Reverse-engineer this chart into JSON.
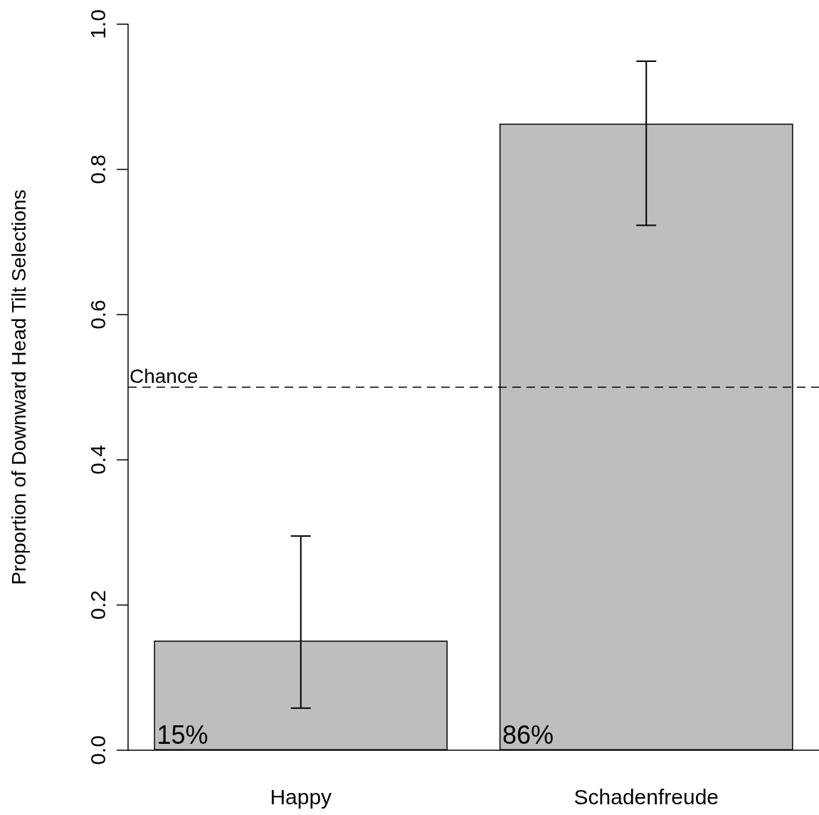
{
  "chart_data": {
    "type": "bar",
    "ylabel": "Proportion of Downward Head Tilt Selections",
    "categories": [
      "Happy",
      "Schadenfreude"
    ],
    "values": [
      0.151,
      0.863
    ],
    "color": "#bebebe",
    "value_labels": [
      "15%",
      "86%"
    ],
    "errors": [
      [
        0.058,
        0.295
      ],
      [
        0.723,
        0.949
      ]
    ],
    "ylim": [
      0,
      1
    ],
    "yticks": [
      {
        "value": 0,
        "label": "0.0"
      },
      {
        "value": 0.2,
        "label": "0.2"
      },
      {
        "value": 0.4,
        "label": "0.4"
      },
      {
        "value": 0.6,
        "label": "0.6"
      },
      {
        "value": 0.8,
        "label": "0.8"
      },
      {
        "value": 1,
        "label": "1.0"
      }
    ],
    "ref_lines": [
      {
        "axis": "y",
        "value": 0.5,
        "label": "Chance",
        "color": "#000000",
        "line_style": "dashed"
      }
    ],
    "grid": false
  }
}
